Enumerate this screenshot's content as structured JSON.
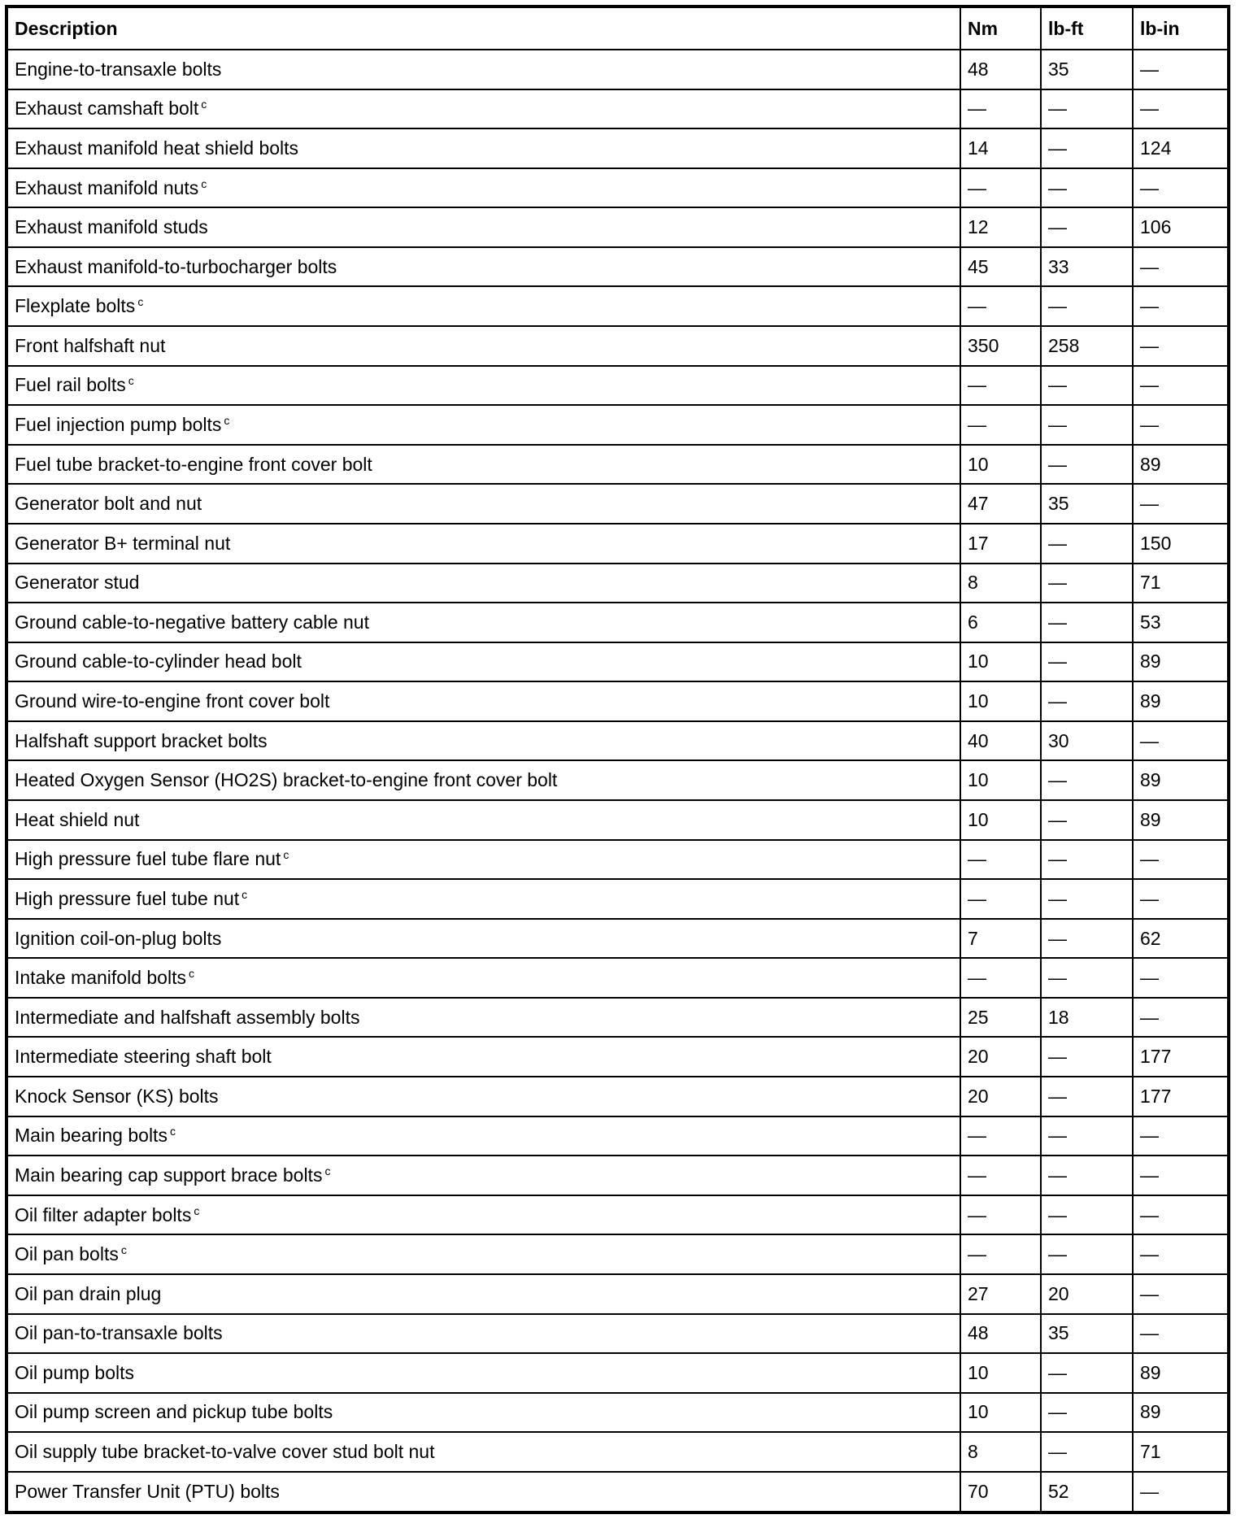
{
  "headers": [
    "Description",
    "Nm",
    "lb-ft",
    "lb-in"
  ],
  "footnote_mark": "c",
  "rows": [
    {
      "desc": "Engine-to-transaxle bolts",
      "note": false,
      "nm": "48",
      "lbft": "35",
      "lbin": "—"
    },
    {
      "desc": "Exhaust camshaft bolt",
      "note": true,
      "nm": "—",
      "lbft": "—",
      "lbin": "—"
    },
    {
      "desc": "Exhaust manifold heat shield bolts",
      "note": false,
      "nm": "14",
      "lbft": "—",
      "lbin": "124"
    },
    {
      "desc": "Exhaust manifold nuts",
      "note": true,
      "nm": "—",
      "lbft": "—",
      "lbin": "—"
    },
    {
      "desc": "Exhaust manifold studs",
      "note": false,
      "nm": "12",
      "lbft": "—",
      "lbin": "106"
    },
    {
      "desc": "Exhaust manifold-to-turbocharger bolts",
      "note": false,
      "nm": "45",
      "lbft": "33",
      "lbin": "—"
    },
    {
      "desc": "Flexplate bolts",
      "note": true,
      "nm": "—",
      "lbft": "—",
      "lbin": "—"
    },
    {
      "desc": "Front halfshaft nut",
      "note": false,
      "nm": "350",
      "lbft": "258",
      "lbin": "—"
    },
    {
      "desc": "Fuel rail bolts",
      "note": true,
      "nm": "—",
      "lbft": "—",
      "lbin": "—"
    },
    {
      "desc": "Fuel injection pump bolts",
      "note": true,
      "nm": "—",
      "lbft": "—",
      "lbin": "—"
    },
    {
      "desc": "Fuel tube bracket-to-engine front cover bolt",
      "note": false,
      "nm": "10",
      "lbft": "—",
      "lbin": "89"
    },
    {
      "desc": "Generator bolt and nut",
      "note": false,
      "nm": "47",
      "lbft": "35",
      "lbin": "—"
    },
    {
      "desc": "Generator B+ terminal nut",
      "note": false,
      "nm": "17",
      "lbft": "—",
      "lbin": "150"
    },
    {
      "desc": "Generator stud",
      "note": false,
      "nm": "8",
      "lbft": "—",
      "lbin": "71"
    },
    {
      "desc": "Ground cable-to-negative battery cable nut",
      "note": false,
      "nm": "6",
      "lbft": "—",
      "lbin": "53"
    },
    {
      "desc": "Ground cable-to-cylinder head bolt",
      "note": false,
      "nm": "10",
      "lbft": "—",
      "lbin": "89"
    },
    {
      "desc": "Ground wire-to-engine front cover bolt",
      "note": false,
      "nm": "10",
      "lbft": "—",
      "lbin": "89"
    },
    {
      "desc": "Halfshaft support bracket bolts",
      "note": false,
      "nm": "40",
      "lbft": "30",
      "lbin": "—"
    },
    {
      "desc": "Heated Oxygen Sensor (HO2S) bracket-to-engine front cover bolt",
      "note": false,
      "nm": "10",
      "lbft": "—",
      "lbin": "89"
    },
    {
      "desc": "Heat shield nut",
      "note": false,
      "nm": "10",
      "lbft": "—",
      "lbin": "89"
    },
    {
      "desc": "High pressure fuel tube flare nut",
      "note": true,
      "nm": "—",
      "lbft": "—",
      "lbin": "—"
    },
    {
      "desc": "High pressure fuel tube nut",
      "note": true,
      "nm": "—",
      "lbft": "—",
      "lbin": "—"
    },
    {
      "desc": "Ignition coil-on-plug bolts",
      "note": false,
      "nm": "7",
      "lbft": "—",
      "lbin": "62"
    },
    {
      "desc": "Intake manifold bolts",
      "note": true,
      "nm": "—",
      "lbft": "—",
      "lbin": "—"
    },
    {
      "desc": "Intermediate and halfshaft assembly bolts",
      "note": false,
      "nm": "25",
      "lbft": "18",
      "lbin": "—"
    },
    {
      "desc": "Intermediate steering shaft bolt",
      "note": false,
      "nm": "20",
      "lbft": "—",
      "lbin": "177"
    },
    {
      "desc": "Knock Sensor (KS) bolts",
      "note": false,
      "nm": "20",
      "lbft": "—",
      "lbin": "177"
    },
    {
      "desc": "Main bearing bolts",
      "note": true,
      "nm": "—",
      "lbft": "—",
      "lbin": "—"
    },
    {
      "desc": "Main bearing cap support brace bolts",
      "note": true,
      "nm": "—",
      "lbft": "—",
      "lbin": "—"
    },
    {
      "desc": "Oil filter adapter bolts",
      "note": true,
      "nm": "—",
      "lbft": "—",
      "lbin": "—"
    },
    {
      "desc": "Oil pan bolts",
      "note": true,
      "nm": "—",
      "lbft": "—",
      "lbin": "—"
    },
    {
      "desc": "Oil pan drain plug",
      "note": false,
      "nm": "27",
      "lbft": "20",
      "lbin": "—"
    },
    {
      "desc": "Oil pan-to-transaxle bolts",
      "note": false,
      "nm": "48",
      "lbft": "35",
      "lbin": "—"
    },
    {
      "desc": "Oil pump bolts",
      "note": false,
      "nm": "10",
      "lbft": "—",
      "lbin": "89"
    },
    {
      "desc": "Oil pump screen and pickup tube bolts",
      "note": false,
      "nm": "10",
      "lbft": "—",
      "lbin": "89"
    },
    {
      "desc": "Oil supply tube bracket-to-valve cover stud bolt nut",
      "note": false,
      "nm": "8",
      "lbft": "—",
      "lbin": "71"
    },
    {
      "desc": "Power Transfer Unit (PTU) bolts",
      "note": false,
      "nm": "70",
      "lbft": "52",
      "lbin": "—"
    }
  ]
}
